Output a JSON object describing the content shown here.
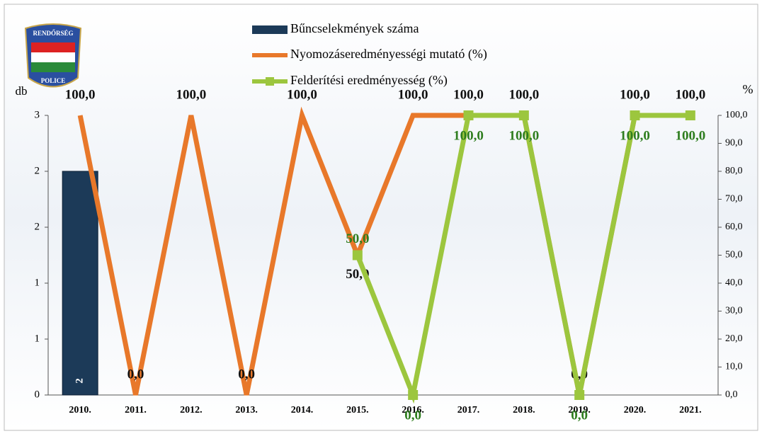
{
  "chart_data": {
    "type": "bar-line",
    "logo": {
      "top": "RENDŐRSÉG",
      "bottom": "POLICE"
    },
    "y_label": "db",
    "y2_label": "%",
    "categories": [
      "2010.",
      "2011.",
      "2012.",
      "2013.",
      "2014.",
      "2015.",
      "2016.",
      "2017.",
      "2018.",
      "2019.",
      "2020.",
      "2021."
    ],
    "ylim": [
      0,
      2.5
    ],
    "yticks": [
      0,
      {
        "value": 0.5,
        "label": "1"
      },
      1,
      {
        "value": 1.5,
        "label": "2"
      },
      2,
      {
        "value": 2.5,
        "label": "3"
      }
    ],
    "y2lim": [
      0,
      100
    ],
    "y2ticks": [
      {
        "value": 0,
        "label": "0,0"
      },
      {
        "value": 10,
        "label": "10,0"
      },
      {
        "value": 20,
        "label": "20,0"
      },
      {
        "value": 30,
        "label": "30,0"
      },
      {
        "value": 40,
        "label": "40,0"
      },
      {
        "value": 50,
        "label": "50,0"
      },
      {
        "value": 60,
        "label": "60,0"
      },
      {
        "value": 70,
        "label": "70,0"
      },
      {
        "value": 80,
        "label": "80,0"
      },
      {
        "value": 90,
        "label": "90,0"
      },
      {
        "value": 100,
        "label": "100,0"
      }
    ],
    "series": [
      {
        "name": "Bűncselekmények száma",
        "type": "bar",
        "color": "#1c3a58",
        "values": [
          2,
          null,
          null,
          null,
          null,
          null,
          null,
          null,
          null,
          null,
          null,
          null
        ],
        "value_labels": [
          "2",
          null,
          null,
          null,
          null,
          null,
          null,
          null,
          null,
          null,
          null,
          null
        ]
      },
      {
        "name": "Nyomozáseredményességi mutató (%)",
        "type": "line",
        "axis": "y2",
        "color": "#e8782a",
        "values": [
          100,
          0,
          100,
          0,
          100,
          50,
          100,
          100,
          100,
          0,
          100,
          100
        ],
        "value_labels": [
          "100,0",
          "0,0",
          "100,0",
          "0,0",
          "100,0",
          "50,0",
          "100,0",
          "100,0",
          "100,0",
          "0,0",
          "100,0",
          "100,0"
        ]
      },
      {
        "name": "Felderítési eredményesség (%)",
        "type": "line",
        "axis": "y2",
        "color": "#9cc63e",
        "values": [
          null,
          null,
          null,
          null,
          null,
          50,
          0,
          100,
          100,
          0,
          100,
          100
        ],
        "value_labels": [
          null,
          null,
          null,
          null,
          null,
          "50,0",
          "0,0",
          "100,0",
          "100,0",
          "0,0",
          "100,0",
          "100,0"
        ]
      }
    ]
  }
}
